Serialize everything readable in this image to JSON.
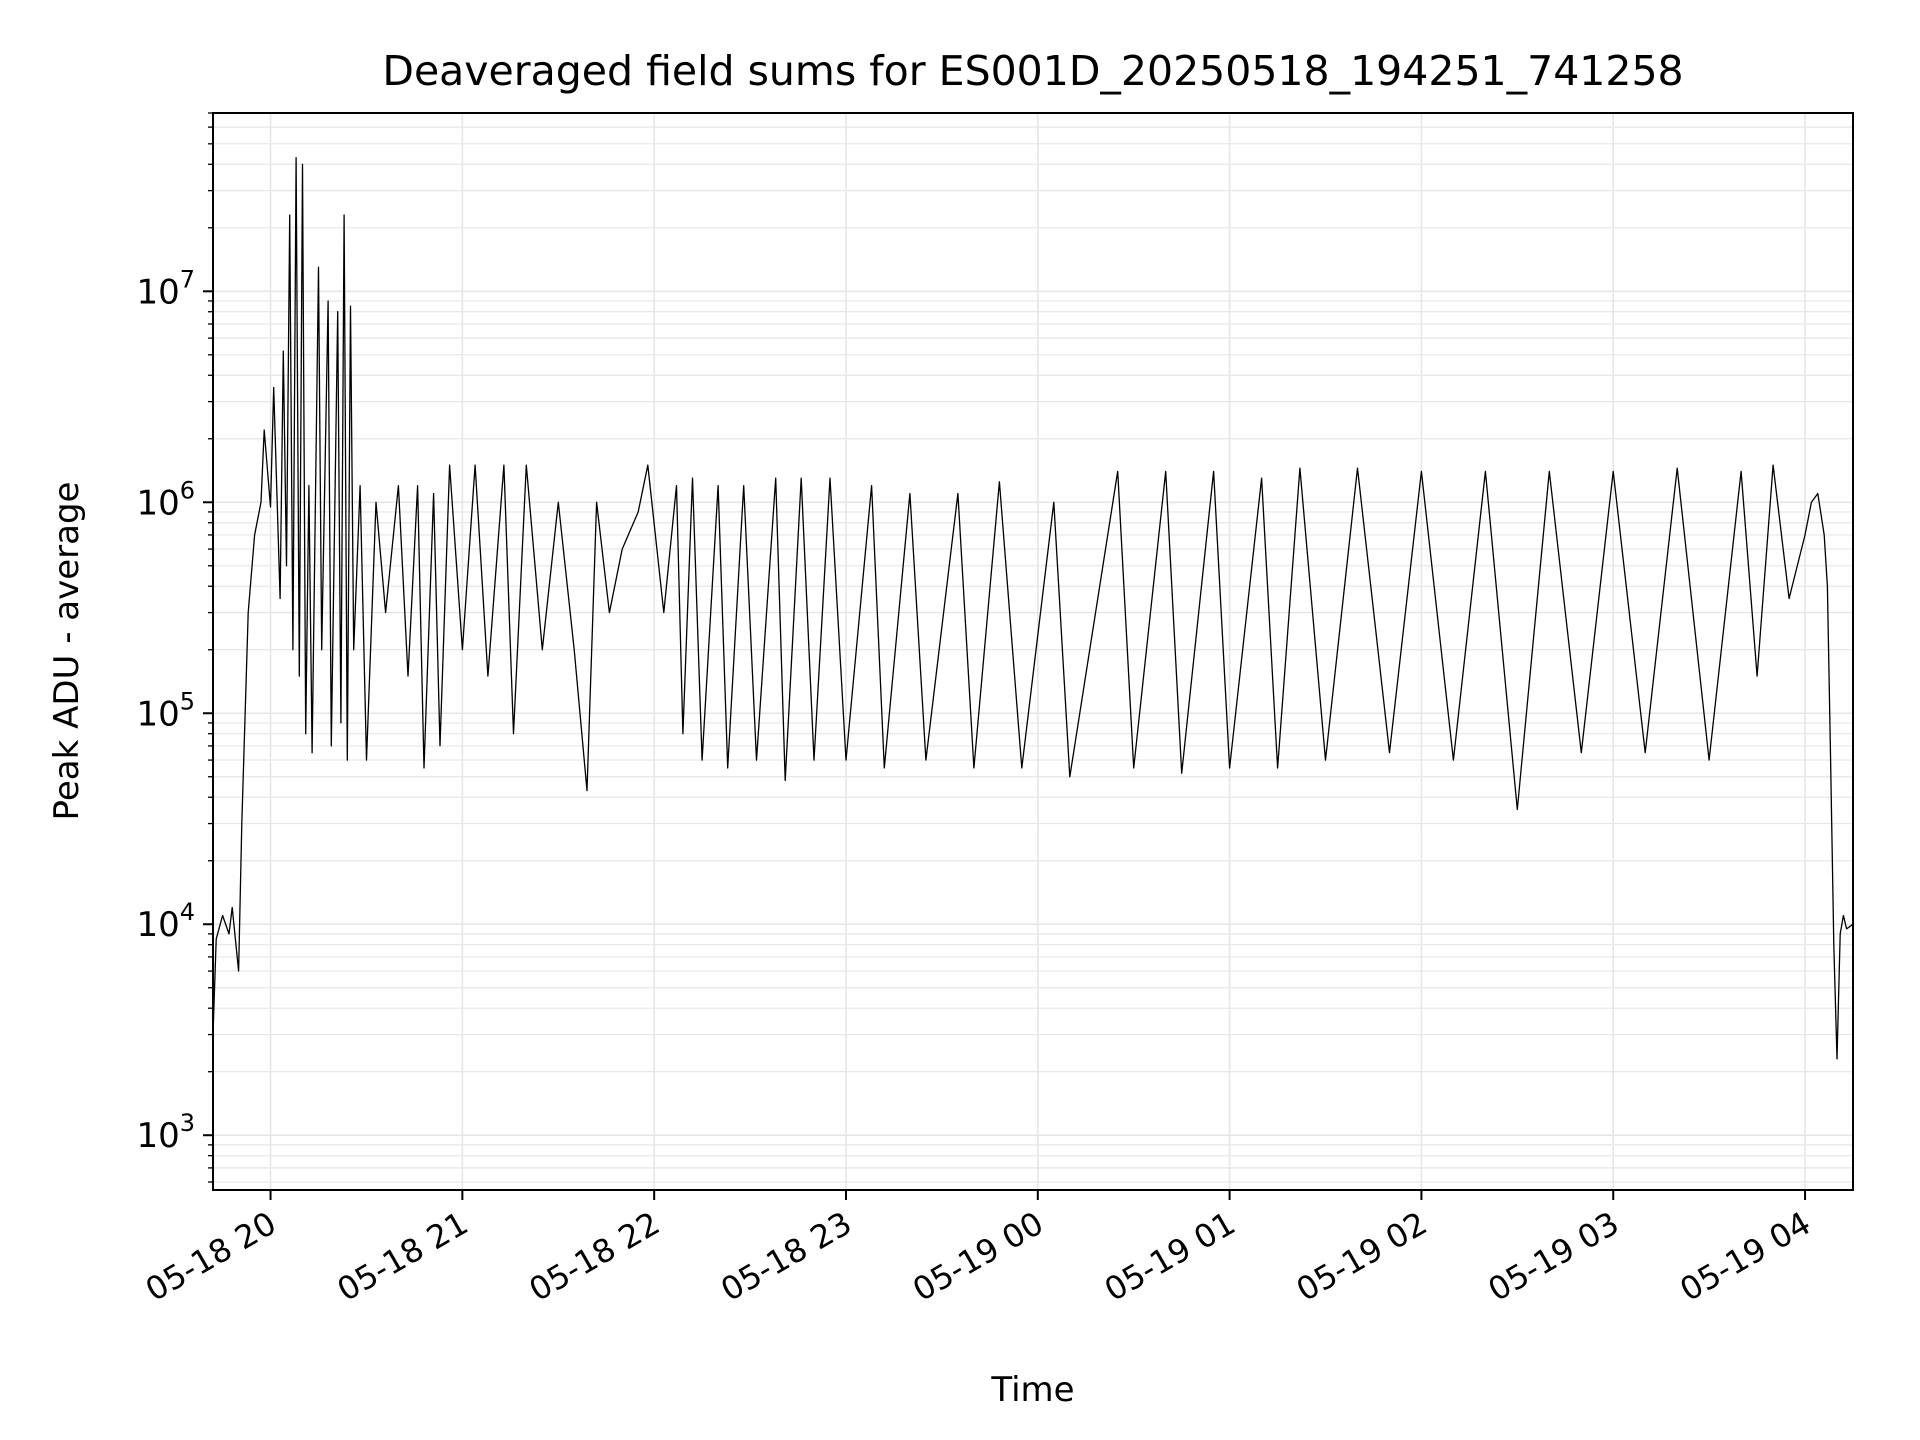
{
  "chart_data": {
    "type": "line",
    "title": "Deaveraged field sums for ES001D_20250518_194251_741258",
    "xlabel": "Time",
    "ylabel": "Peak ADU - average",
    "x_tick_labels": [
      "05-18 20",
      "05-18 21",
      "05-18 22",
      "05-18 23",
      "05-19 00",
      "05-19 01",
      "05-19 02",
      "05-19 03",
      "05-19 04"
    ],
    "y_tick_labels": [
      {
        "base": "10",
        "exp": "3"
      },
      {
        "base": "10",
        "exp": "4"
      },
      {
        "base": "10",
        "exp": "5"
      },
      {
        "base": "10",
        "exp": "6"
      },
      {
        "base": "10",
        "exp": "7"
      }
    ],
    "xlim": [
      "2025-05-18 19:42",
      "2025-05-19 04:15"
    ],
    "ylim": [
      550,
      70000000
    ],
    "yscale": "log",
    "grid": true,
    "line_color": "#000000",
    "grid_color": "#e6e6e6",
    "series": [
      {
        "values": [
          [
            "2025-05-18 19:42",
            3000
          ],
          [
            "2025-05-18 19:43",
            8500
          ],
          [
            "2025-05-18 19:45",
            11000
          ],
          [
            "2025-05-18 19:47",
            9000
          ],
          [
            "2025-05-18 19:48",
            12000
          ],
          [
            "2025-05-18 19:50",
            6000
          ],
          [
            "2025-05-18 19:51",
            30000
          ],
          [
            "2025-05-18 19:53",
            300000
          ],
          [
            "2025-05-18 19:55",
            700000
          ],
          [
            "2025-05-18 19:57",
            1000000
          ],
          [
            "2025-05-18 19:58",
            2200000
          ],
          [
            "2025-05-18 20:00",
            950000
          ],
          [
            "2025-05-18 20:01",
            3500000
          ],
          [
            "2025-05-18 20:03",
            350000
          ],
          [
            "2025-05-18 20:04",
            5200000
          ],
          [
            "2025-05-18 20:05",
            500000
          ],
          [
            "2025-05-18 20:06",
            23000000
          ],
          [
            "2025-05-18 20:07",
            200000
          ],
          [
            "2025-05-18 20:08",
            43000000
          ],
          [
            "2025-05-18 20:09",
            150000
          ],
          [
            "2025-05-18 20:10",
            40000000
          ],
          [
            "2025-05-18 20:11",
            80000
          ],
          [
            "2025-05-18 20:12",
            1200000
          ],
          [
            "2025-05-18 20:13",
            65000
          ],
          [
            "2025-05-18 20:15",
            13000000
          ],
          [
            "2025-05-18 20:16",
            200000
          ],
          [
            "2025-05-18 20:18",
            9000000
          ],
          [
            "2025-05-18 20:19",
            70000
          ],
          [
            "2025-05-18 20:21",
            8000000
          ],
          [
            "2025-05-18 20:22",
            90000
          ],
          [
            "2025-05-18 20:23",
            23000000
          ],
          [
            "2025-05-18 20:24",
            60000
          ],
          [
            "2025-05-18 20:25",
            8500000
          ],
          [
            "2025-05-18 20:26",
            200000
          ],
          [
            "2025-05-18 20:28",
            1200000
          ],
          [
            "2025-05-18 20:30",
            60000
          ],
          [
            "2025-05-18 20:33",
            1000000
          ],
          [
            "2025-05-18 20:36",
            300000
          ],
          [
            "2025-05-18 20:40",
            1200000
          ],
          [
            "2025-05-18 20:43",
            150000
          ],
          [
            "2025-05-18 20:46",
            1200000
          ],
          [
            "2025-05-18 20:48",
            55000
          ],
          [
            "2025-05-18 20:51",
            1100000
          ],
          [
            "2025-05-18 20:53",
            70000
          ],
          [
            "2025-05-18 20:56",
            1500000
          ],
          [
            "2025-05-18 21:00",
            200000
          ],
          [
            "2025-05-18 21:04",
            1500000
          ],
          [
            "2025-05-18 21:08",
            150000
          ],
          [
            "2025-05-18 21:13",
            1500000
          ],
          [
            "2025-05-18 21:16",
            80000
          ],
          [
            "2025-05-18 21:20",
            1500000
          ],
          [
            "2025-05-18 21:25",
            200000
          ],
          [
            "2025-05-18 21:30",
            1000000
          ],
          [
            "2025-05-18 21:35",
            200000
          ],
          [
            "2025-05-18 21:39",
            43000
          ],
          [
            "2025-05-18 21:42",
            1000000
          ],
          [
            "2025-05-18 21:46",
            300000
          ],
          [
            "2025-05-18 21:50",
            600000
          ],
          [
            "2025-05-18 21:55",
            900000
          ],
          [
            "2025-05-18 21:58",
            1500000
          ],
          [
            "2025-05-18 22:03",
            300000
          ],
          [
            "2025-05-18 22:07",
            1200000
          ],
          [
            "2025-05-18 22:09",
            80000
          ],
          [
            "2025-05-18 22:12",
            1300000
          ],
          [
            "2025-05-18 22:15",
            60000
          ],
          [
            "2025-05-18 22:20",
            1200000
          ],
          [
            "2025-05-18 22:23",
            55000
          ],
          [
            "2025-05-18 22:28",
            1200000
          ],
          [
            "2025-05-18 22:32",
            60000
          ],
          [
            "2025-05-18 22:38",
            1300000
          ],
          [
            "2025-05-18 22:41",
            48000
          ],
          [
            "2025-05-18 22:46",
            1300000
          ],
          [
            "2025-05-18 22:50",
            60000
          ],
          [
            "2025-05-18 22:55",
            1300000
          ],
          [
            "2025-05-18 23:00",
            60000
          ],
          [
            "2025-05-18 23:08",
            1200000
          ],
          [
            "2025-05-18 23:12",
            55000
          ],
          [
            "2025-05-18 23:20",
            1100000
          ],
          [
            "2025-05-18 23:25",
            60000
          ],
          [
            "2025-05-18 23:35",
            1100000
          ],
          [
            "2025-05-18 23:40",
            55000
          ],
          [
            "2025-05-18 23:48",
            1250000
          ],
          [
            "2025-05-18 23:55",
            55000
          ],
          [
            "2025-05-19 00:05",
            1000000
          ],
          [
            "2025-05-19 00:10",
            50000
          ],
          [
            "2025-05-19 00:25",
            1400000
          ],
          [
            "2025-05-19 00:30",
            55000
          ],
          [
            "2025-05-19 00:40",
            1400000
          ],
          [
            "2025-05-19 00:45",
            52000
          ],
          [
            "2025-05-19 00:55",
            1400000
          ],
          [
            "2025-05-19 01:00",
            55000
          ],
          [
            "2025-05-19 01:10",
            1300000
          ],
          [
            "2025-05-19 01:15",
            55000
          ],
          [
            "2025-05-19 01:22",
            1450000
          ],
          [
            "2025-05-19 01:30",
            60000
          ],
          [
            "2025-05-19 01:40",
            1450000
          ],
          [
            "2025-05-19 01:50",
            65000
          ],
          [
            "2025-05-19 02:00",
            1400000
          ],
          [
            "2025-05-19 02:10",
            60000
          ],
          [
            "2025-05-19 02:20",
            1400000
          ],
          [
            "2025-05-19 02:30",
            35000
          ],
          [
            "2025-05-19 02:40",
            1400000
          ],
          [
            "2025-05-19 02:50",
            65000
          ],
          [
            "2025-05-19 03:00",
            1400000
          ],
          [
            "2025-05-19 03:10",
            65000
          ],
          [
            "2025-05-19 03:20",
            1450000
          ],
          [
            "2025-05-19 03:30",
            60000
          ],
          [
            "2025-05-19 03:40",
            1400000
          ],
          [
            "2025-05-19 03:45",
            150000
          ],
          [
            "2025-05-19 03:50",
            1500000
          ],
          [
            "2025-05-19 03:55",
            350000
          ],
          [
            "2025-05-19 04:00",
            700000
          ],
          [
            "2025-05-19 04:02",
            1000000
          ],
          [
            "2025-05-19 04:04",
            1100000
          ],
          [
            "2025-05-19 04:06",
            700000
          ],
          [
            "2025-05-19 04:07",
            400000
          ],
          [
            "2025-05-19 04:08",
            60000
          ],
          [
            "2025-05-19 04:09",
            8000
          ],
          [
            "2025-05-19 04:10",
            2300
          ],
          [
            "2025-05-19 04:11",
            9000
          ],
          [
            "2025-05-19 04:12",
            11000
          ],
          [
            "2025-05-19 04:13",
            9500
          ],
          [
            "2025-05-19 04:15",
            10000
          ]
        ]
      }
    ]
  }
}
